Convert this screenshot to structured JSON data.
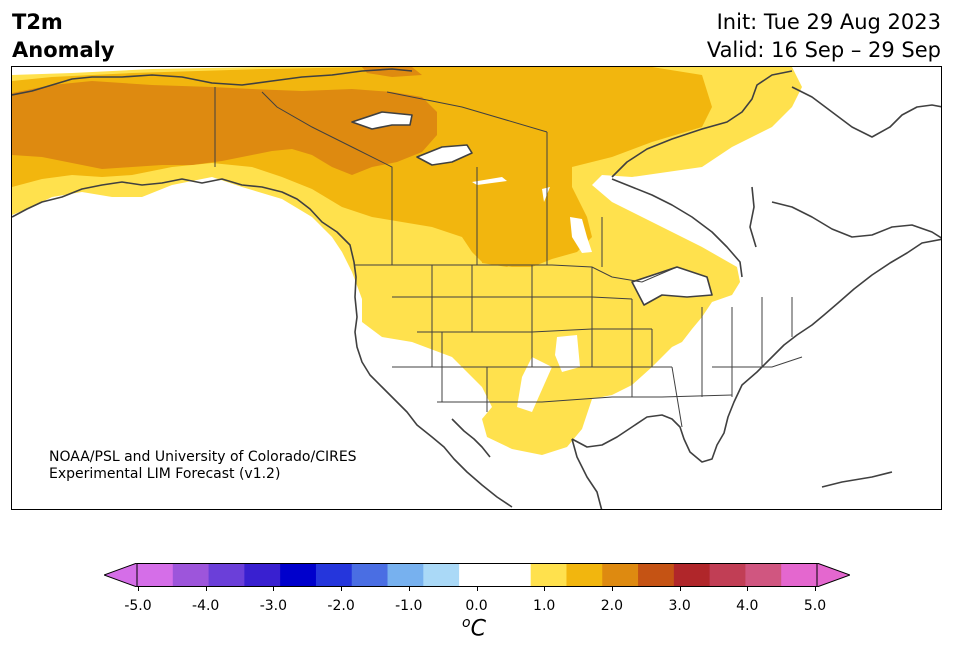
{
  "header": {
    "title_line1": "T2m",
    "title_line2": "Anomaly",
    "init": "Init: Tue 29 Aug 2023",
    "valid": "Valid: 16 Sep – 29 Sep"
  },
  "credit": {
    "line1": "NOAA/PSL and University of Colorado/CIRES",
    "line2": "Experimental LIM Forecast (v1.2)"
  },
  "colorbar": {
    "colors": [
      "#d56ee8",
      "#9d55db",
      "#6b3fd9",
      "#3920d0",
      "#0000cc",
      "#2536dc",
      "#4a6ee3",
      "#77b1ef",
      "#aad9f7",
      "#ffffff",
      "#ffffff",
      "#ffe14d",
      "#f2b60e",
      "#de8a10",
      "#c55314",
      "#b0262a",
      "#c13e55",
      "#d05680",
      "#e467cf"
    ],
    "left_arrow_color": "#d56ee8",
    "right_arrow_color": "#e467cf",
    "tick_labels": [
      "-5.0",
      "-4.0",
      "-3.0",
      "-2.0",
      "-1.0",
      "0.0",
      "1.0",
      "2.0",
      "3.0",
      "4.0",
      "5.0"
    ],
    "unit_letter": "C",
    "unit_sup": "o"
  },
  "map": {
    "anomaly_colors": {
      "plus_0_5_to_1": "#ffe14d",
      "plus_1_to_1_5": "#f2b60e",
      "plus_1_5_to_2": "#de8a10",
      "plus_2_to_2_5": "#c55314"
    }
  }
}
